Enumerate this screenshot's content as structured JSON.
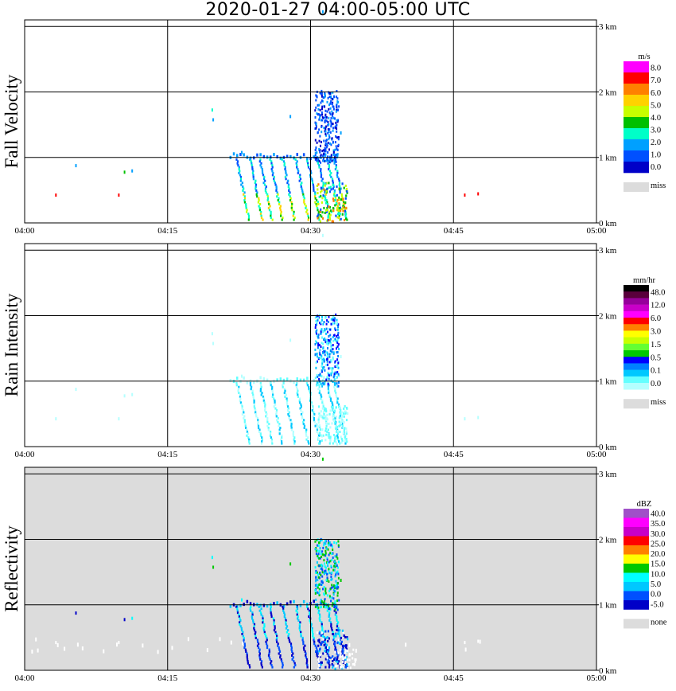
{
  "title": "2020-01-27   04:00-05:00 UTC",
  "time_ticks": [
    "04:00",
    "04:15",
    "04:30",
    "04:45",
    "05:00"
  ],
  "height_ticks": [
    "0 km",
    "1 km",
    "2 km",
    "3 km"
  ],
  "chart_data": [
    {
      "type": "heatmap",
      "ylabel": "Fall Velocity",
      "xlim": [
        "04:00",
        "05:00"
      ],
      "ylim_km": [
        0,
        3.1
      ],
      "grid": true,
      "colorbar": {
        "unit": "m/s",
        "labels": [
          "8.0",
          "7.0",
          "6.0",
          "5.0",
          "4.0",
          "3.0",
          "2.0",
          "1.0",
          "0.0"
        ],
        "colors": [
          "#ff00ff",
          "#ff0000",
          "#ff8000",
          "#ffd200",
          "#c8ff00",
          "#00c000",
          "#00ffc8",
          "#00a0ff",
          "#0050ff",
          "#0000c8"
        ],
        "missing_label": "miss",
        "missing_color": "#dcdcdc"
      },
      "background": "#ffffff",
      "events": [
        {
          "t0": 22.2,
          "t1": 35.0,
          "h0": 0.0,
          "h1": 1.02,
          "kind": "streaks"
        },
        {
          "t0": 30.5,
          "t1": 33.3,
          "h0": 0.8,
          "h1": 2.0,
          "kind": "upper_cell"
        }
      ]
    },
    {
      "type": "heatmap",
      "ylabel": "Rain Intensity",
      "xlim": [
        "04:00",
        "05:00"
      ],
      "ylim_km": [
        0,
        3.1
      ],
      "grid": true,
      "colorbar": {
        "unit": "mm/hr",
        "labels": [
          "48.0",
          "12.0",
          "6.0",
          "3.0",
          "1.5",
          "0.5",
          "0.1",
          "0.0"
        ],
        "colors": [
          "#000000",
          "#5a003c",
          "#96009b",
          "#c800c8",
          "#ff00ff",
          "#ff0000",
          "#ff8000",
          "#ffff00",
          "#c8ff00",
          "#64ff32",
          "#00c800",
          "#0000ff",
          "#0080ff",
          "#00c8ff",
          "#64ffff",
          "#b4ffff"
        ],
        "missing_label": "miss",
        "missing_color": "#dcdcdc"
      },
      "background": "#ffffff"
    },
    {
      "type": "heatmap",
      "ylabel": "Reflectivity",
      "xlim": [
        "04:00",
        "05:00"
      ],
      "ylim_km": [
        0,
        3.1
      ],
      "grid": true,
      "colorbar": {
        "unit": "dBZ",
        "labels": [
          "40.0",
          "35.0",
          "30.0",
          "25.0",
          "20.0",
          "15.0",
          "10.0",
          "5.0",
          "0.0",
          "-5.0"
        ],
        "colors": [
          "#a050c8",
          "#ff00ff",
          "#c800c8",
          "#ff0000",
          "#ff8000",
          "#ffff00",
          "#00c800",
          "#00ffff",
          "#00c8ff",
          "#0050ff",
          "#0000c8"
        ],
        "missing_label": "none",
        "missing_color": "#dcdcdc"
      },
      "background": "#dcdcdc"
    }
  ]
}
